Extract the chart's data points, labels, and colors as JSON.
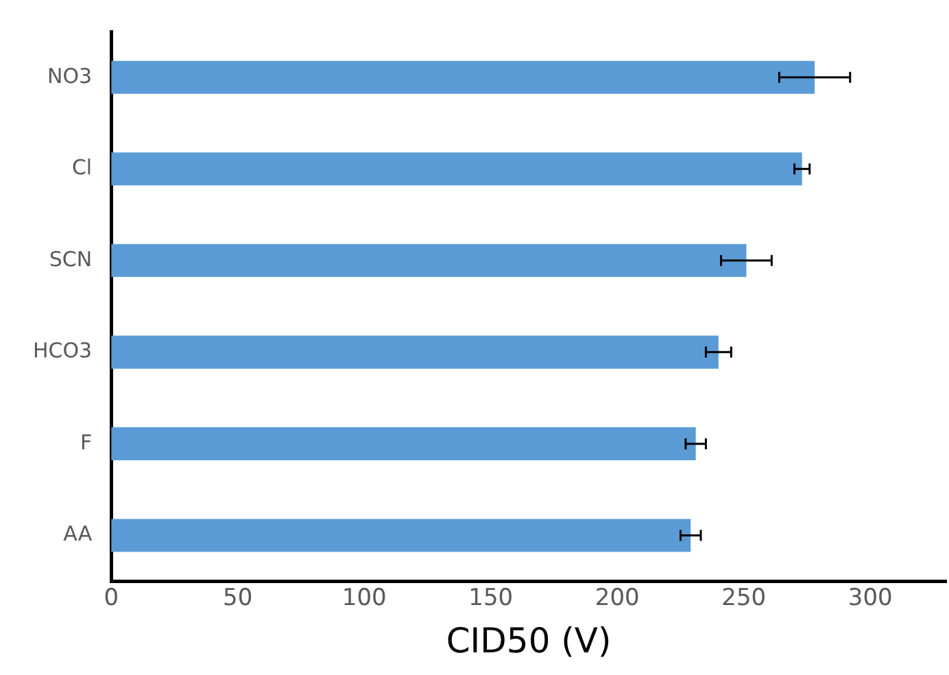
{
  "chart_data": {
    "type": "bar",
    "orientation": "horizontal",
    "xlabel": "CID50 (V)",
    "categories": [
      "NO3",
      "Cl",
      "SCN",
      "HCO3",
      "F",
      "AA"
    ],
    "values": [
      278,
      273,
      251,
      240,
      231,
      229
    ],
    "errors": [
      14,
      3,
      10,
      5,
      4,
      4
    ],
    "color": "#5b9bd5",
    "xlim": [
      0,
      330
    ],
    "xticks": [
      0,
      50,
      100,
      150,
      200,
      250,
      300
    ],
    "grid": false,
    "legend": false
  }
}
